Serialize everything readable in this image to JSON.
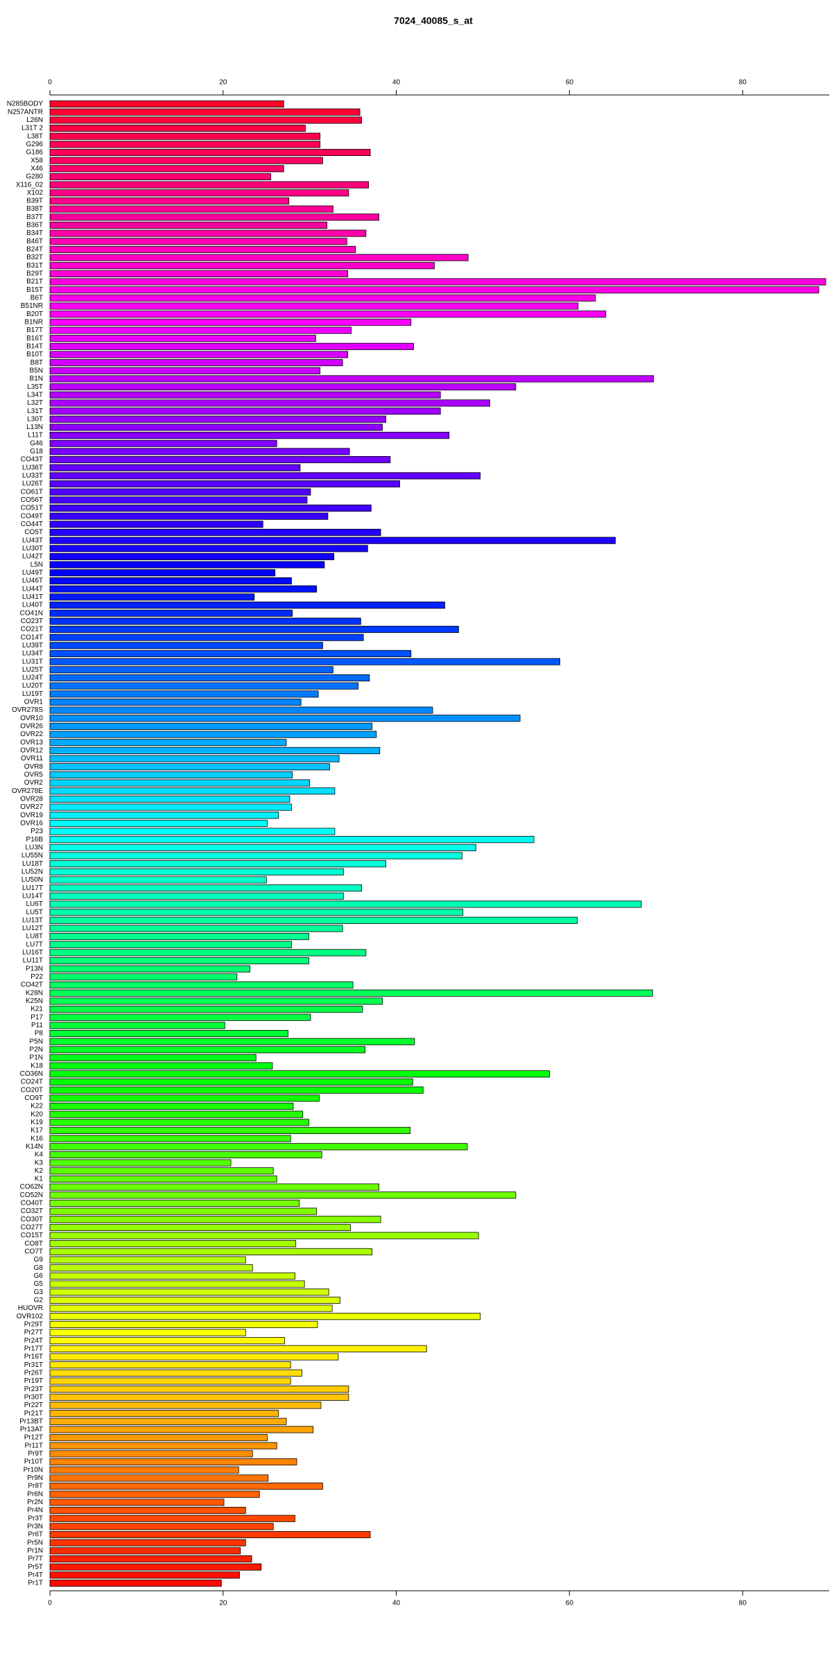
{
  "chart_data": {
    "type": "bar",
    "orientation": "horizontal",
    "title": "7024_40085_s_at",
    "categories": [
      "N285BODY",
      "N257ANTR",
      "L26N",
      "L31T 2",
      "L38T",
      "G296",
      "G186",
      "X58",
      "X46",
      "G280",
      "X116_02",
      "X102",
      "B39T",
      "B38T",
      "B37T",
      "B36T",
      "B34T",
      "B46T",
      "B24T",
      "B32T",
      "B31T",
      "B29T",
      "B21T",
      "B15T",
      "B6T",
      "B51NR",
      "B20T",
      "B1NR",
      "B17T",
      "B16T",
      "B14T",
      "B10T",
      "B8T",
      "B5N",
      "B1N",
      "L35T",
      "L34T",
      "L32T",
      "L31T",
      "L30T",
      "L13N",
      "L11T",
      "G46",
      "G18",
      "CO43T",
      "LU36T",
      "LU33T",
      "LU26T",
      "CO61T",
      "CO56T",
      "CO51T",
      "CO49T",
      "CO44T",
      "CO5T",
      "LU43T",
      "LU30T",
      "LU42T",
      "L5N",
      "LU49T",
      "LU46T",
      "LU44T",
      "LU41T",
      "LU40T",
      "CO41N",
      "CO23T",
      "CO21T",
      "CO14T",
      "LU39T",
      "LU34T",
      "LU31T",
      "LU25T",
      "LU24T",
      "LU20T",
      "LU19T",
      "OVR1",
      "OVR278S",
      "OVR10",
      "OVR26",
      "OVR22",
      "OVR13",
      "OVR12",
      "OVR11",
      "OVR8",
      "OVR5",
      "OVR2",
      "OVR278E",
      "OVR28",
      "OVR27",
      "OVR19",
      "OVR16",
      "P23",
      "P16B",
      "LU3N",
      "LU55N",
      "LU18T",
      "LU52N",
      "LU50N",
      "LU17T",
      "LU14T",
      "LU6T",
      "LU5T",
      "LU13T",
      "LU12T",
      "LU8T",
      "LU7T",
      "LU16T",
      "LU11T",
      "P13N",
      "P22",
      "CO42T",
      "K28N",
      "K25N",
      "K21",
      "P17",
      "P11",
      "P8",
      "P5N",
      "P2N",
      "P1N",
      "K18",
      "CO36N",
      "CO24T",
      "CO20T",
      "CO9T",
      "K22",
      "K20",
      "K19",
      "K17",
      "K16",
      "K14N",
      "K4",
      "K3",
      "K2",
      "K1",
      "CO62N",
      "CO52N",
      "CO40T",
      "CO32T",
      "CO30T",
      "CO27T",
      "CO15T",
      "CO8T",
      "CO7T",
      "G9",
      "G8",
      "G6",
      "G5",
      "G3",
      "G2",
      "HUOVR",
      "OVR102",
      "Pr29T",
      "Pr27T",
      "Pr24T",
      "Pr17T",
      "Pr16T",
      "Pr31T",
      "Pr26T",
      "Pr19T",
      "Pr23T",
      "Pr30T",
      "Pr22T",
      "Pr21T",
      "Pr13BT",
      "Pr13AT",
      "Pr12T",
      "Pr11T",
      "Pr9T",
      "Pr10T",
      "Pr10N",
      "Pr9N",
      "Pr8T",
      "Pr6N",
      "Pr2N",
      "Pr4N",
      "Pr3T",
      "Pr3N",
      "Pr6T",
      "Pr5N",
      "Pr1N",
      "Pr7T",
      "Pr5T",
      "Pr4T",
      "Pr1T"
    ],
    "values": [
      27,
      35.8,
      36,
      29.5,
      31.2,
      31.2,
      37,
      31.5,
      27,
      25.5,
      36.8,
      34.5,
      27.6,
      32.7,
      38,
      32,
      36.5,
      34.3,
      35.3,
      48.3,
      44.4,
      34.4,
      89.6,
      88.8,
      63,
      61,
      64.2,
      41.7,
      34.8,
      30.7,
      42,
      34.4,
      33.8,
      31.2,
      69.7,
      53.8,
      45.1,
      50.8,
      45.1,
      38.8,
      38.4,
      46.1,
      26.2,
      34.6,
      39.3,
      28.9,
      49.7,
      40.4,
      30.1,
      29.7,
      37.1,
      32.1,
      24.6,
      38.2,
      65.3,
      36.7,
      32.8,
      31.7,
      26,
      27.9,
      30.8,
      23.6,
      45.6,
      28,
      35.9,
      47.2,
      36.2,
      31.5,
      41.7,
      58.9,
      32.7,
      36.9,
      35.6,
      31,
      29,
      44.2,
      54.3,
      37.2,
      37.7,
      27.3,
      38.1,
      33.4,
      32.3,
      28,
      30,
      32.9,
      27.7,
      27.9,
      26.4,
      25.1,
      32.9,
      55.9,
      49.2,
      47.6,
      38.8,
      33.9,
      25,
      36,
      33.9,
      68.3,
      47.7,
      60.9,
      33.8,
      29.9,
      27.9,
      36.5,
      29.9,
      23.1,
      21.6,
      35,
      69.6,
      38.4,
      36.1,
      30.1,
      20.2,
      27.5,
      42.1,
      36.4,
      23.8,
      25.7,
      57.7,
      41.9,
      43.1,
      31.1,
      28.1,
      29.2,
      29.9,
      41.6,
      27.8,
      48.2,
      31.4,
      20.9,
      25.8,
      26.2,
      38,
      53.8,
      28.8,
      30.8,
      38.2,
      34.7,
      49.5,
      28.4,
      37.2,
      22.6,
      23.4,
      28.3,
      29.4,
      32.2,
      33.5,
      32.6,
      49.7,
      30.9,
      22.6,
      27.1,
      43.5,
      33.3,
      27.8,
      29.1,
      27.8,
      34.5,
      34.5,
      31.3,
      26.4,
      27.3,
      30.4,
      25.1,
      26.2,
      23.4,
      28.5,
      21.8,
      25.2,
      31.5,
      24.2,
      20.1,
      22.6,
      28.3,
      25.8,
      37,
      22.6,
      22,
      23.3,
      24.4,
      21.9,
      19.8
    ],
    "colors": [
      "hsl(350,100%,50%)",
      "hsl(348,100%,50%)",
      "hsl(346,100%,50%)",
      "hsl(344,100%,50%)",
      "hsl(342,100%,50%)",
      "hsl(340,100%,50%)",
      "hsl(339,100%,50%)",
      "hsl(337,100%,50%)",
      "hsl(335,100%,50%)",
      "hsl(333,100%,50%)",
      "hsl(331,100%,50%)",
      "hsl(329,100%,50%)",
      "hsl(327,100%,50%)",
      "hsl(325,100%,50%)",
      "hsl(323,100%,50%)",
      "hsl(322,100%,50%)",
      "hsl(320,100%,50%)",
      "hsl(318,100%,50%)",
      "hsl(316,100%,50%)",
      "hsl(314,100%,50%)",
      "hsl(312,100%,50%)",
      "hsl(310,100%,50%)",
      "hsl(308,100%,50%)",
      "hsl(306,100%,50%)",
      "hsl(304,100%,50%)",
      "hsl(302,100%,50%)",
      "hsl(301,100%,50%)",
      "hsl(299,100%,50%)",
      "hsl(297,100%,50%)",
      "hsl(295,100%,50%)",
      "hsl(293,100%,50%)",
      "hsl(291,100%,50%)",
      "hsl(289,100%,50%)",
      "hsl(287,100%,50%)",
      "hsl(285,100%,50%)",
      "hsl(284,100%,50%)",
      "hsl(282,100%,50%)",
      "hsl(280,100%,50%)",
      "hsl(278,100%,50%)",
      "hsl(276,100%,50%)",
      "hsl(274,100%,50%)",
      "hsl(272,100%,50%)",
      "hsl(270,100%,50%)",
      "hsl(268,100%,50%)",
      "hsl(266,100%,50%)",
      "hsl(264,100%,50%)",
      "hsl(263,100%,50%)",
      "hsl(261,100%,50%)",
      "hsl(259,100%,50%)",
      "hsl(257,100%,50%)",
      "hsl(255,100%,50%)",
      "hsl(253,100%,50%)",
      "hsl(251,100%,50%)",
      "hsl(249,100%,50%)",
      "hsl(247,100%,50%)",
      "hsl(246,100%,50%)",
      "hsl(244,100%,50%)",
      "hsl(242,100%,50%)",
      "hsl(240,100%,50%)",
      "hsl(238,100%,50%)",
      "hsl(236,100%,50%)",
      "hsl(234,100%,50%)",
      "hsl(232,100%,50%)",
      "hsl(230,100%,50%)",
      "hsl(228,100%,50%)",
      "hsl(226,100%,50%)",
      "hsl(225,100%,50%)",
      "hsl(223,100%,50%)",
      "hsl(221,100%,50%)",
      "hsl(219,100%,50%)",
      "hsl(217,100%,50%)",
      "hsl(215,100%,50%)",
      "hsl(213,100%,50%)",
      "hsl(211,100%,50%)",
      "hsl(209,100%,50%)",
      "hsl(208,100%,50%)",
      "hsl(206,100%,50%)",
      "hsl(204,100%,50%)",
      "hsl(202,100%,50%)",
      "hsl(200,100%,50%)",
      "hsl(198,100%,50%)",
      "hsl(196,100%,50%)",
      "hsl(194,100%,50%)",
      "hsl(192,100%,50%)",
      "hsl(190,100%,50%)",
      "hsl(188,100%,50%)",
      "hsl(187,100%,50%)",
      "hsl(185,100%,50%)",
      "hsl(183,100%,50%)",
      "hsl(181,100%,50%)",
      "hsl(179,100%,50%)",
      "hsl(177,100%,50%)",
      "hsl(175,100%,50%)",
      "hsl(173,100%,50%)",
      "hsl(171,100%,50%)",
      "hsl(170,100%,50%)",
      "hsl(168,100%,50%)",
      "hsl(166,100%,50%)",
      "hsl(164,100%,50%)",
      "hsl(162,100%,50%)",
      "hsl(160,100%,50%)",
      "hsl(158,100%,50%)",
      "hsl(156,100%,50%)",
      "hsl(154,100%,50%)",
      "hsl(152,100%,50%)",
      "hsl(150,100%,50%)",
      "hsl(149,100%,50%)",
      "hsl(147,100%,50%)",
      "hsl(145,100%,50%)",
      "hsl(143,100%,50%)",
      "hsl(141,100%,50%)",
      "hsl(139,100%,50%)",
      "hsl(137,100%,50%)",
      "hsl(135,100%,50%)",
      "hsl(133,100%,50%)",
      "hsl(132,100%,50%)",
      "hsl(130,100%,50%)",
      "hsl(128,100%,50%)",
      "hsl(126,100%,50%)",
      "hsl(124,100%,50%)",
      "hsl(122,100%,50%)",
      "hsl(120,100%,50%)",
      "hsl(118,100%,50%)",
      "hsl(116,100%,50%)",
      "hsl(114,100%,50%)",
      "hsl(112,100%,50%)",
      "hsl(111,100%,50%)",
      "hsl(109,100%,50%)",
      "hsl(107,100%,50%)",
      "hsl(105,100%,50%)",
      "hsl(103,100%,50%)",
      "hsl(101,100%,50%)",
      "hsl(99,100%,50%)",
      "hsl(97,100%,50%)",
      "hsl(95,100%,50%)",
      "hsl(94,100%,50%)",
      "hsl(92,100%,50%)",
      "hsl(90,100%,50%)",
      "hsl(88,100%,50%)",
      "hsl(86,100%,50%)",
      "hsl(84,100%,50%)",
      "hsl(82,100%,50%)",
      "hsl(80,100%,50%)",
      "hsl(78,100%,50%)",
      "hsl(76,100%,50%)",
      "hsl(74,100%,50%)",
      "hsl(73,100%,50%)",
      "hsl(71,100%,50%)",
      "hsl(69,100%,50%)",
      "hsl(67,100%,50%)",
      "hsl(65,100%,50%)",
      "hsl(63,100%,50%)",
      "hsl(61,100%,50%)",
      "hsl(59,100%,50%)",
      "hsl(57,100%,50%)",
      "hsl(55,100%,50%)",
      "hsl(54,100%,50%)",
      "hsl(52,100%,50%)",
      "hsl(50,100%,50%)",
      "hsl(48,100%,50%)",
      "hsl(46,100%,50%)",
      "hsl(44,100%,50%)",
      "hsl(42,100%,50%)",
      "hsl(40,100%,50%)",
      "hsl(38,100%,50%)",
      "hsl(36,100%,50%)",
      "hsl(35,100%,50%)",
      "hsl(33,100%,50%)",
      "hsl(31,100%,50%)",
      "hsl(29,100%,50%)",
      "hsl(27,100%,50%)",
      "hsl(25,100%,50%)",
      "hsl(23,100%,50%)",
      "hsl(21,100%,50%)",
      "hsl(19,100%,50%)",
      "hsl(17,100%,50%)",
      "hsl(16,100%,50%)",
      "hsl(14,100%,50%)",
      "hsl(12,100%,50%)",
      "hsl(10,100%,50%)",
      "hsl(8,100%,50%)",
      "hsl(6,100%,50%)",
      "hsl(4,100%,50%)",
      "hsl(2,100%,50%)"
    ],
    "xlim": [
      0,
      90
    ],
    "xticks": [
      0,
      20,
      40,
      60,
      80
    ],
    "grid": false
  }
}
